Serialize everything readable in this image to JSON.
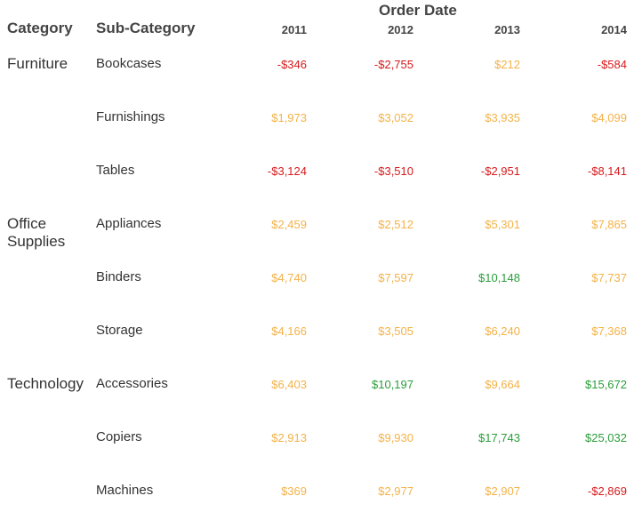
{
  "header": {
    "category_label": "Category",
    "subcategory_label": "Sub-Category",
    "order_date_label": "Order Date",
    "years": [
      "2011",
      "2012",
      "2013",
      "2014"
    ]
  },
  "colors": {
    "negative": "#d7191c",
    "low_positive": "#f4b248",
    "high_positive": "#2a9d3a"
  },
  "chart_data": {
    "type": "table",
    "columns": [
      "2011",
      "2012",
      "2013",
      "2014"
    ],
    "groups": [
      {
        "category": "Furniture",
        "rows": [
          {
            "sub": "Bookcases",
            "values": [
              "-$346",
              "-$2,755",
              "$212",
              "-$584"
            ],
            "tone": [
              "neg",
              "neg",
              "low",
              "neg"
            ]
          },
          {
            "sub": "Furnishings",
            "values": [
              "$1,973",
              "$3,052",
              "$3,935",
              "$4,099"
            ],
            "tone": [
              "low",
              "low",
              "low",
              "low"
            ]
          },
          {
            "sub": "Tables",
            "values": [
              "-$3,124",
              "-$3,510",
              "-$2,951",
              "-$8,141"
            ],
            "tone": [
              "neg",
              "neg",
              "neg",
              "neg"
            ]
          }
        ]
      },
      {
        "category": "Office Supplies",
        "rows": [
          {
            "sub": "Appliances",
            "values": [
              "$2,459",
              "$2,512",
              "$5,301",
              "$7,865"
            ],
            "tone": [
              "low",
              "low",
              "low",
              "low"
            ]
          },
          {
            "sub": "Binders",
            "values": [
              "$4,740",
              "$7,597",
              "$10,148",
              "$7,737"
            ],
            "tone": [
              "low",
              "low",
              "high",
              "low"
            ]
          },
          {
            "sub": "Storage",
            "values": [
              "$4,166",
              "$3,505",
              "$6,240",
              "$7,368"
            ],
            "tone": [
              "low",
              "low",
              "low",
              "low"
            ]
          }
        ]
      },
      {
        "category": "Technology",
        "rows": [
          {
            "sub": "Accessories",
            "values": [
              "$6,403",
              "$10,197",
              "$9,664",
              "$15,672"
            ],
            "tone": [
              "low",
              "high",
              "low",
              "high"
            ]
          },
          {
            "sub": "Copiers",
            "values": [
              "$2,913",
              "$9,930",
              "$17,743",
              "$25,032"
            ],
            "tone": [
              "low",
              "low",
              "high",
              "high"
            ]
          },
          {
            "sub": "Machines",
            "values": [
              "$369",
              "$2,977",
              "$2,907",
              "-$2,869"
            ],
            "tone": [
              "low",
              "low",
              "low",
              "neg"
            ]
          }
        ]
      }
    ]
  }
}
